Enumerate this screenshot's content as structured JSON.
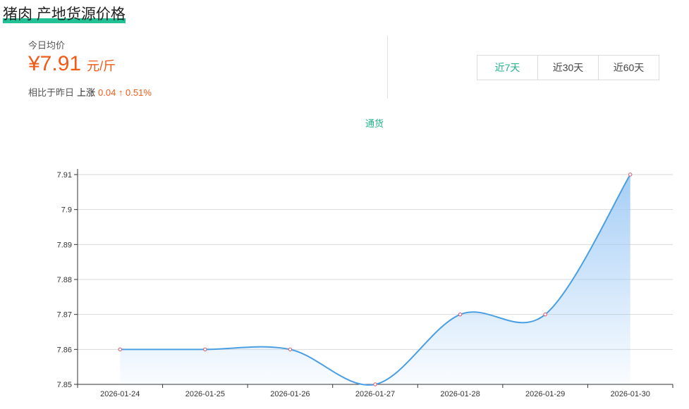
{
  "page": {
    "title": "猪肉 产地货源价格"
  },
  "summary": {
    "today_label": "今日均价",
    "price": "¥7.91",
    "unit": "元/斤",
    "compare_label": "相比于昨日",
    "direction": "上涨",
    "change": "0.04 ↑ 0.51%"
  },
  "range_tabs": [
    {
      "label": "近7天",
      "active": true
    },
    {
      "label": "近30天",
      "active": false
    },
    {
      "label": "近60天",
      "active": false
    }
  ],
  "colors": {
    "accent": "#21b08a",
    "price": "#f25a16",
    "line": "#4a9fe3",
    "area": "#9cc9f5",
    "point": "#e0506a"
  },
  "chart_data": {
    "type": "area",
    "legend": [
      "通货"
    ],
    "legend_position": "top-center",
    "x": [
      "2026-01-24",
      "2026-01-25",
      "2026-01-26",
      "2026-01-27",
      "2026-01-28",
      "2026-01-29",
      "2026-01-30"
    ],
    "series": [
      {
        "name": "通货",
        "values": [
          7.86,
          7.86,
          7.86,
          7.85,
          7.87,
          7.87,
          7.91
        ]
      }
    ],
    "ylim": [
      7.85,
      7.91
    ],
    "yticks": [
      "7.85",
      "7.86",
      "7.87",
      "7.88",
      "7.89",
      "7.9",
      "7.91"
    ],
    "grid": true,
    "smooth": true
  }
}
